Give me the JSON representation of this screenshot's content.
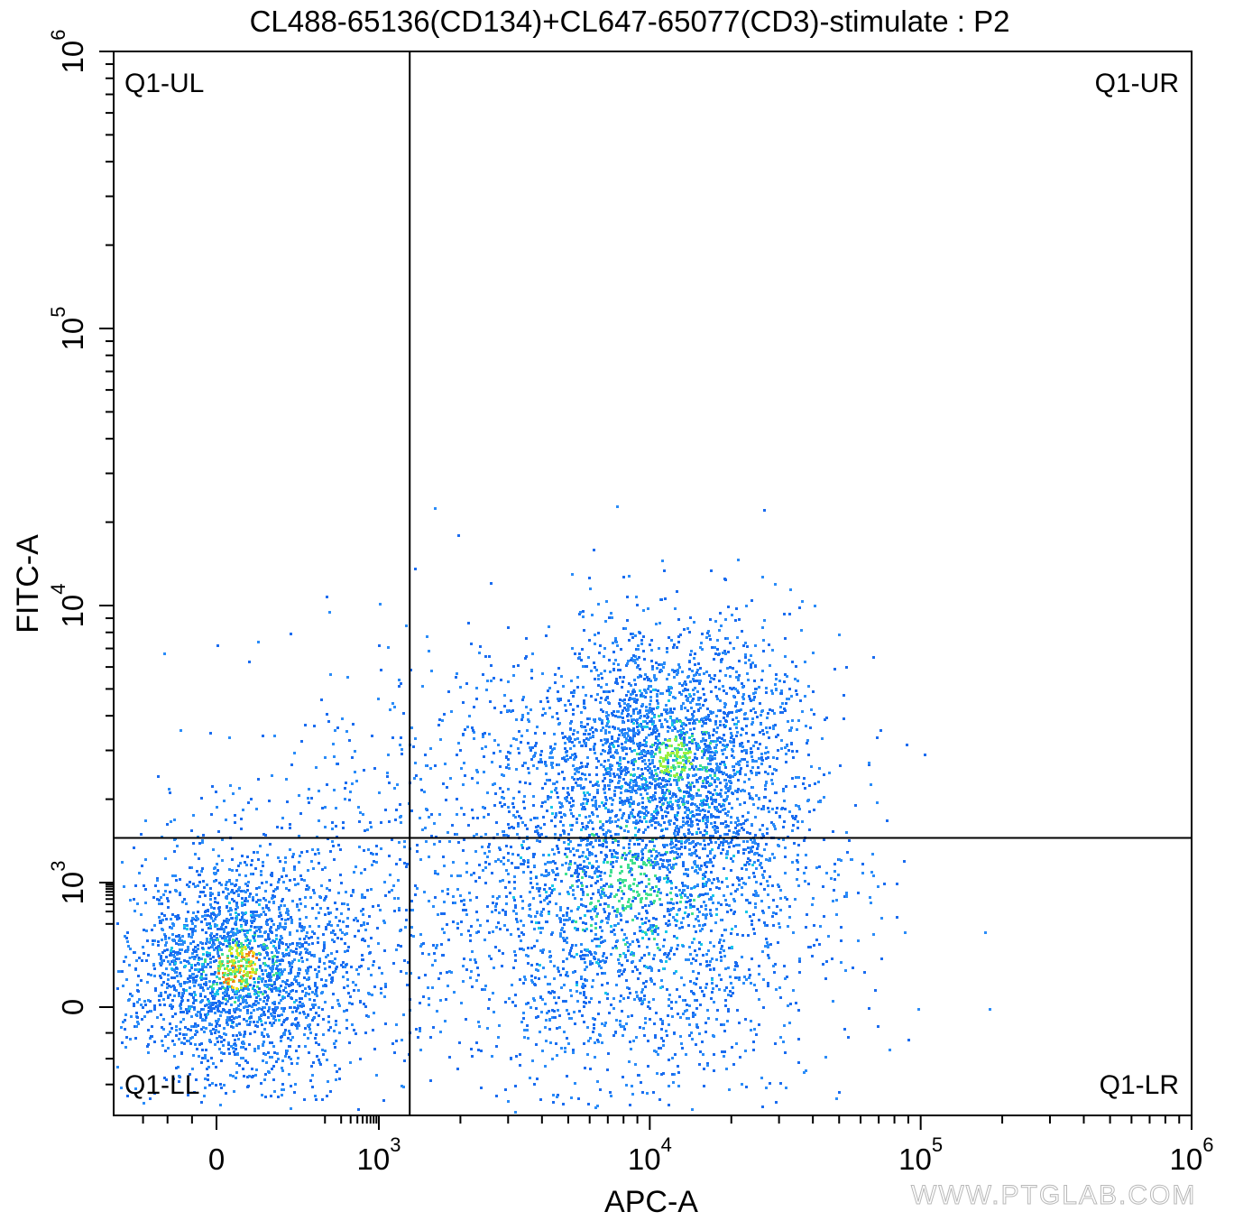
{
  "chart_data": {
    "type": "scatter",
    "title": "CL488-65136(CD134)+CL647-65077(CD3)-stimulate : P2",
    "xlabel": "APC-A",
    "ylabel": "FITC-A",
    "x_scale": "biexponential",
    "y_scale": "biexponential",
    "xlim": [
      -400,
      1000000
    ],
    "ylim": [
      -400,
      1000000
    ],
    "x_ticks": [
      {
        "value": 0,
        "base": "0",
        "exp": ""
      },
      {
        "value": 1000,
        "base": "10",
        "exp": "3"
      },
      {
        "value": 10000,
        "base": "10",
        "exp": "4"
      },
      {
        "value": 100000,
        "base": "10",
        "exp": "5"
      },
      {
        "value": 1000000,
        "base": "10",
        "exp": "6"
      }
    ],
    "y_ticks": [
      {
        "value": 0,
        "base": "0",
        "exp": ""
      },
      {
        "value": 1000,
        "base": "10",
        "exp": "3"
      },
      {
        "value": 10000,
        "base": "10",
        "exp": "4"
      },
      {
        "value": 100000,
        "base": "10",
        "exp": "5"
      },
      {
        "value": 1000000,
        "base": "10",
        "exp": "6"
      }
    ],
    "quadrant_gate": {
      "x": 1300,
      "y": 1450
    },
    "quadrant_labels": {
      "ul": "Q1-UL",
      "ur": "Q1-UR",
      "ll": "Q1-LL",
      "lr": "Q1-LR"
    },
    "populations": [
      {
        "center_x": 150,
        "center_y": 350,
        "spread": "dense low cluster"
      },
      {
        "center_x": 9000,
        "center_y": 1200,
        "spread": "broad APC-positive cloud"
      },
      {
        "center_x": 12000,
        "center_y": 2200,
        "spread": "dense upper core"
      }
    ],
    "density_colors": [
      "#1a6cf0",
      "#2a8cf8",
      "#18c8e8",
      "#40e090",
      "#a0f040",
      "#f0e020",
      "#f08020",
      "#e82020"
    ],
    "grid": false,
    "legend": "none"
  },
  "watermark": "WWW.PTGLAB.COM"
}
